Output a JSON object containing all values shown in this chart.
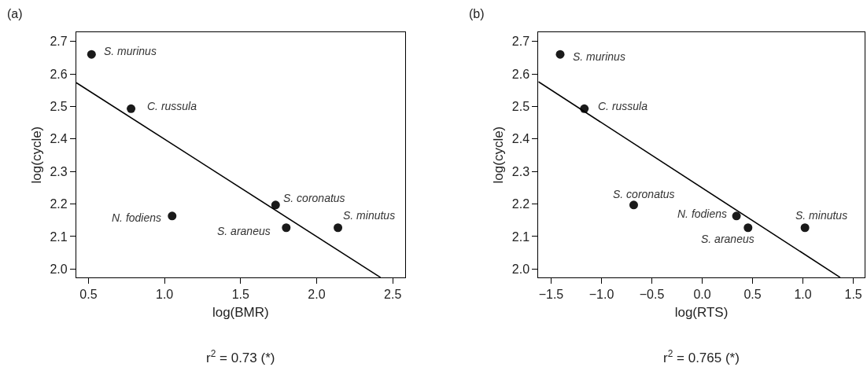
{
  "chart_data": [
    {
      "type": "scatter",
      "title": "(a)",
      "xlabel": "log(BMR)",
      "ylabel": "log(cycle)",
      "xlim": [
        0.42,
        2.58
      ],
      "ylim": [
        1.974,
        2.728
      ],
      "xticks": [
        0.5,
        {
          "value": 1.0,
          "label": "1.0"
        },
        1.5,
        {
          "value": 2.0,
          "label": "2.0"
        },
        2.5
      ],
      "yticks": [
        {
          "value": 2.0,
          "label": "2.0"
        },
        2.1,
        2.2,
        2.3,
        2.4,
        2.5,
        2.6,
        2.7
      ],
      "series": [
        {
          "marker": "circle",
          "color": "#1a1a1a",
          "x": [
            0.52,
            0.78,
            1.05,
            1.73,
            1.8,
            2.14
          ],
          "values": [
            2.66,
            2.493,
            2.163,
            2.197,
            2.127,
            2.127
          ]
        },
        {
          "type": "line",
          "color": "#000000",
          "x": [
            0.42,
            2.42
          ],
          "values": [
            2.573,
            1.974
          ]
        }
      ],
      "annotations": [
        {
          "text": "S. murinus",
          "x": 0.52,
          "y": 2.66
        },
        {
          "text": "C. russula",
          "x": 0.78,
          "y": 2.493
        },
        {
          "text": "N. fodiens",
          "x": 1.05,
          "y": 2.163
        },
        {
          "text": "S. coronatus",
          "x": 1.73,
          "y": 2.197
        },
        {
          "text": "S. araneus",
          "x": 1.8,
          "y": 2.127
        },
        {
          "text": "S. minutus",
          "x": 2.14,
          "y": 2.127
        },
        "r$^{2}$ = 0.73 (*)"
      ]
    },
    {
      "type": "scatter",
      "title": "(b)",
      "xlabel": "log(RTS)",
      "ylabel": "log(cycle)",
      "xlim": [
        -1.626,
        1.61
      ],
      "ylim": [
        1.974,
        2.728
      ],
      "xticks": [
        {
          "value": -1.5,
          "label": "−1.5"
        },
        {
          "value": -1.0,
          "label": "−1.0"
        },
        {
          "value": -0.5,
          "label": "−0.5"
        },
        {
          "value": 0.0,
          "label": "0.0"
        },
        0.5,
        {
          "value": 1.0,
          "label": "1.0"
        },
        1.5
      ],
      "yticks": [
        {
          "value": 2.0,
          "label": "2.0"
        },
        2.1,
        2.2,
        2.3,
        2.4,
        2.5,
        2.6,
        2.7
      ],
      "series": [
        {
          "marker": "circle",
          "color": "#1a1a1a",
          "x": [
            -1.41,
            -1.17,
            -0.68,
            0.34,
            0.455,
            1.02
          ],
          "values": [
            2.66,
            2.493,
            2.197,
            2.163,
            2.127,
            2.127
          ]
        },
        {
          "type": "line",
          "color": "#000000",
          "x": [
            -1.626,
            1.37
          ],
          "values": [
            2.576,
            1.974
          ]
        }
      ],
      "annotations": [
        {
          "text": "S. murinus",
          "x": -1.41,
          "y": 2.66
        },
        {
          "text": "C. russula",
          "x": -1.17,
          "y": 2.493
        },
        {
          "text": "S. coronatus",
          "x": -0.68,
          "y": 2.197
        },
        {
          "text": "N. fodiens",
          "x": 0.34,
          "y": 2.163
        },
        {
          "text": "S. araneus",
          "x": 0.455,
          "y": 2.127
        },
        {
          "text": "S. minutus",
          "x": 1.02,
          "y": 2.127
        },
        "r$^{2}$ = 0.765 (*)"
      ]
    }
  ]
}
